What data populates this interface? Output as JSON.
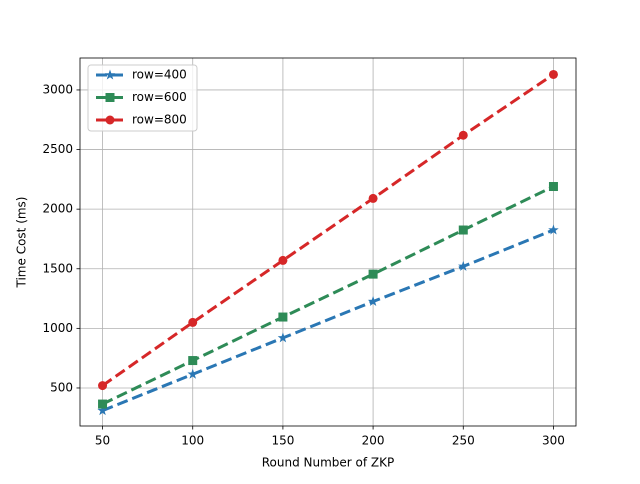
{
  "chart_data": {
    "type": "line",
    "xlabel": "Round Number of ZKP",
    "ylabel": "Time Cost (ms)",
    "x": [
      50,
      100,
      150,
      200,
      250,
      300
    ],
    "series": [
      {
        "name": "row=400",
        "color": "#2a77b4",
        "marker": "star",
        "values": [
          310,
          615,
          920,
          1225,
          1520,
          1825
        ]
      },
      {
        "name": "row=600",
        "color": "#2e8b57",
        "marker": "square",
        "values": [
          365,
          730,
          1095,
          1455,
          1825,
          2190
        ]
      },
      {
        "name": "row=800",
        "color": "#d62728",
        "marker": "circle",
        "values": [
          520,
          1050,
          1570,
          2090,
          2620,
          3130
        ]
      }
    ],
    "xlim": [
      37.5,
      312.5
    ],
    "xticks": [
      50,
      100,
      150,
      200,
      250,
      300
    ],
    "ylim": [
      181,
      3268
    ],
    "yticks": [
      500,
      1000,
      1500,
      2000,
      2500,
      3000
    ],
    "grid": true,
    "legend": "upper left"
  }
}
